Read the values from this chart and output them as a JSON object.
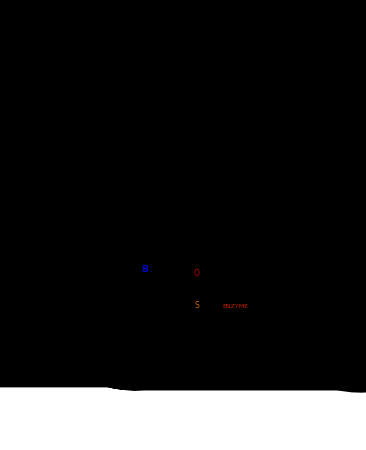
{
  "bg_color": "#ffffff",
  "black": "#000000",
  "red": "#cc0000",
  "blue": "#0000cc",
  "orange": "#cc6600",
  "enzyme_red": "#cc2200",
  "figsize": [
    3.66,
    4.5
  ],
  "dpi": 100
}
